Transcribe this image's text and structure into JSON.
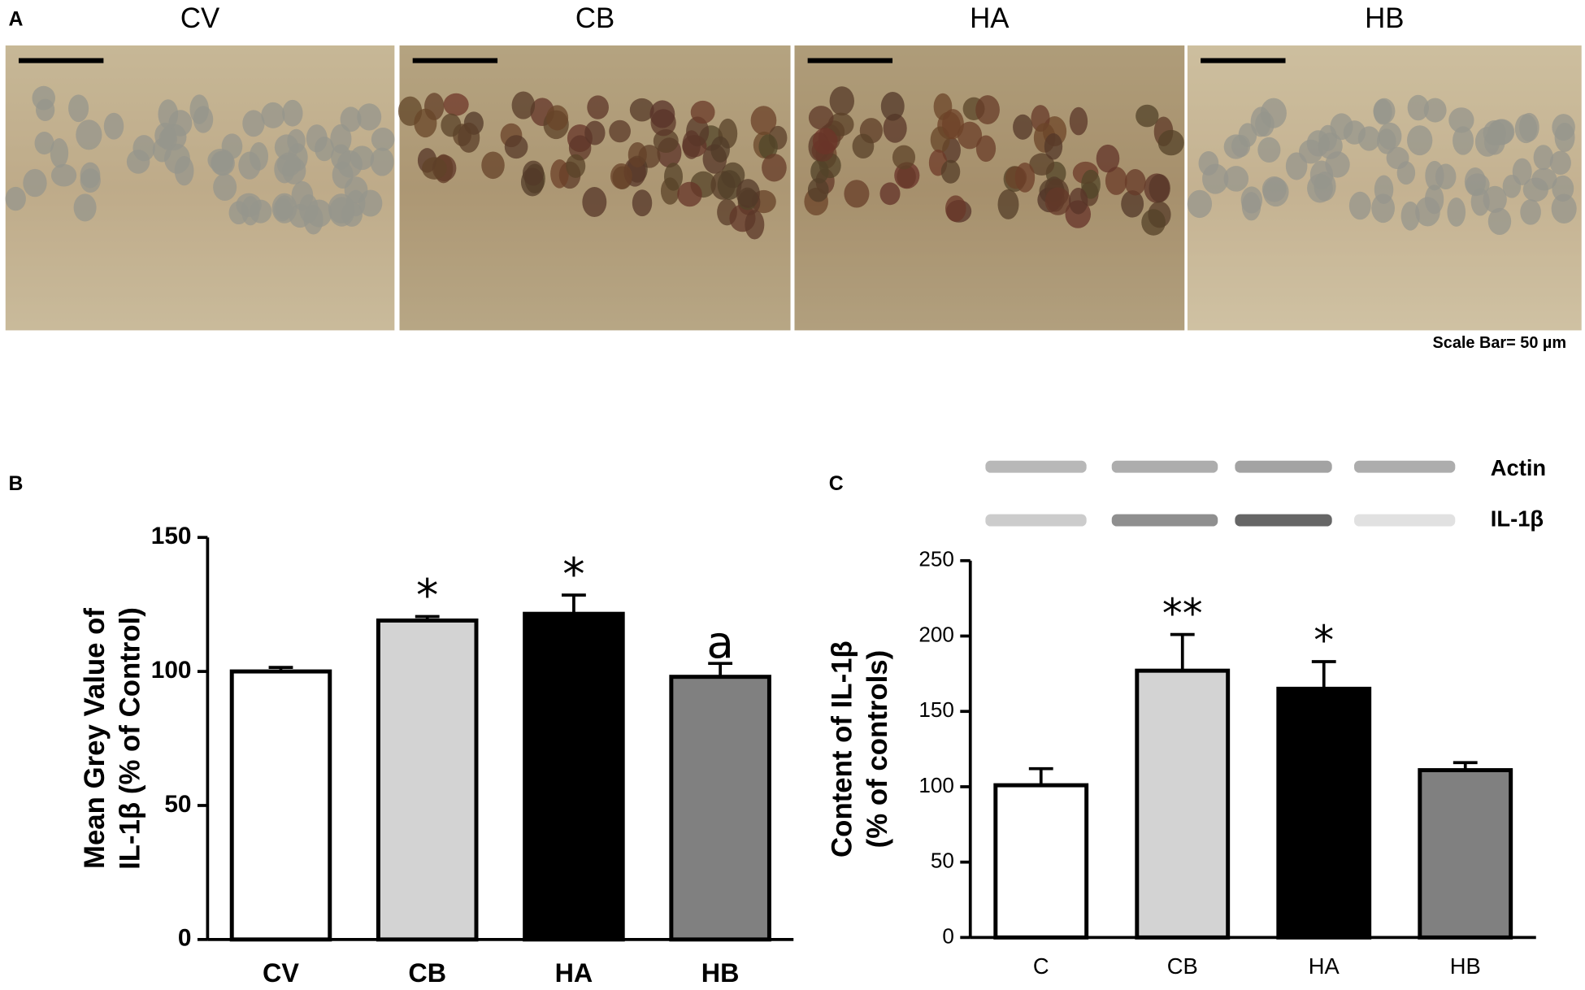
{
  "panel_a": {
    "label": "A",
    "titles": [
      "CV",
      "CB",
      "HA",
      "HB"
    ],
    "scale_bar": "Scale Bar= 50 µm"
  },
  "chart_data": [
    {
      "type": "bar",
      "panel": "B",
      "ylabel": [
        "Mean Grey Value of",
        "IL-1β (% of Control)"
      ],
      "categories": [
        "CV",
        "CB",
        "HA",
        "HB"
      ],
      "values": [
        100,
        119,
        121.5,
        98
      ],
      "errors": [
        1.5,
        1.5,
        7,
        5
      ],
      "colors": [
        "#ffffff",
        "#d3d3d3",
        "#000000",
        "#808080"
      ],
      "annotations": [
        null,
        "*",
        "*",
        "a"
      ],
      "ylim": [
        0,
        150
      ],
      "yticks": [
        0,
        50,
        100,
        150
      ]
    },
    {
      "type": "bar",
      "panel": "C",
      "ylabel": [
        "Content of IL-1β",
        "(% of controls)"
      ],
      "blot_labels": [
        "Actin",
        "IL-1β"
      ],
      "categories": [
        "C",
        "CB",
        "HA",
        "HB"
      ],
      "values": [
        101,
        177,
        165,
        111
      ],
      "errors": [
        11,
        24,
        18,
        5
      ],
      "colors": [
        "#ffffff",
        "#d3d3d3",
        "#000000",
        "#808080"
      ],
      "annotations": [
        null,
        "**",
        "*",
        null
      ],
      "ylim": [
        0,
        250
      ],
      "yticks": [
        0,
        50,
        100,
        150,
        200,
        250
      ]
    }
  ]
}
